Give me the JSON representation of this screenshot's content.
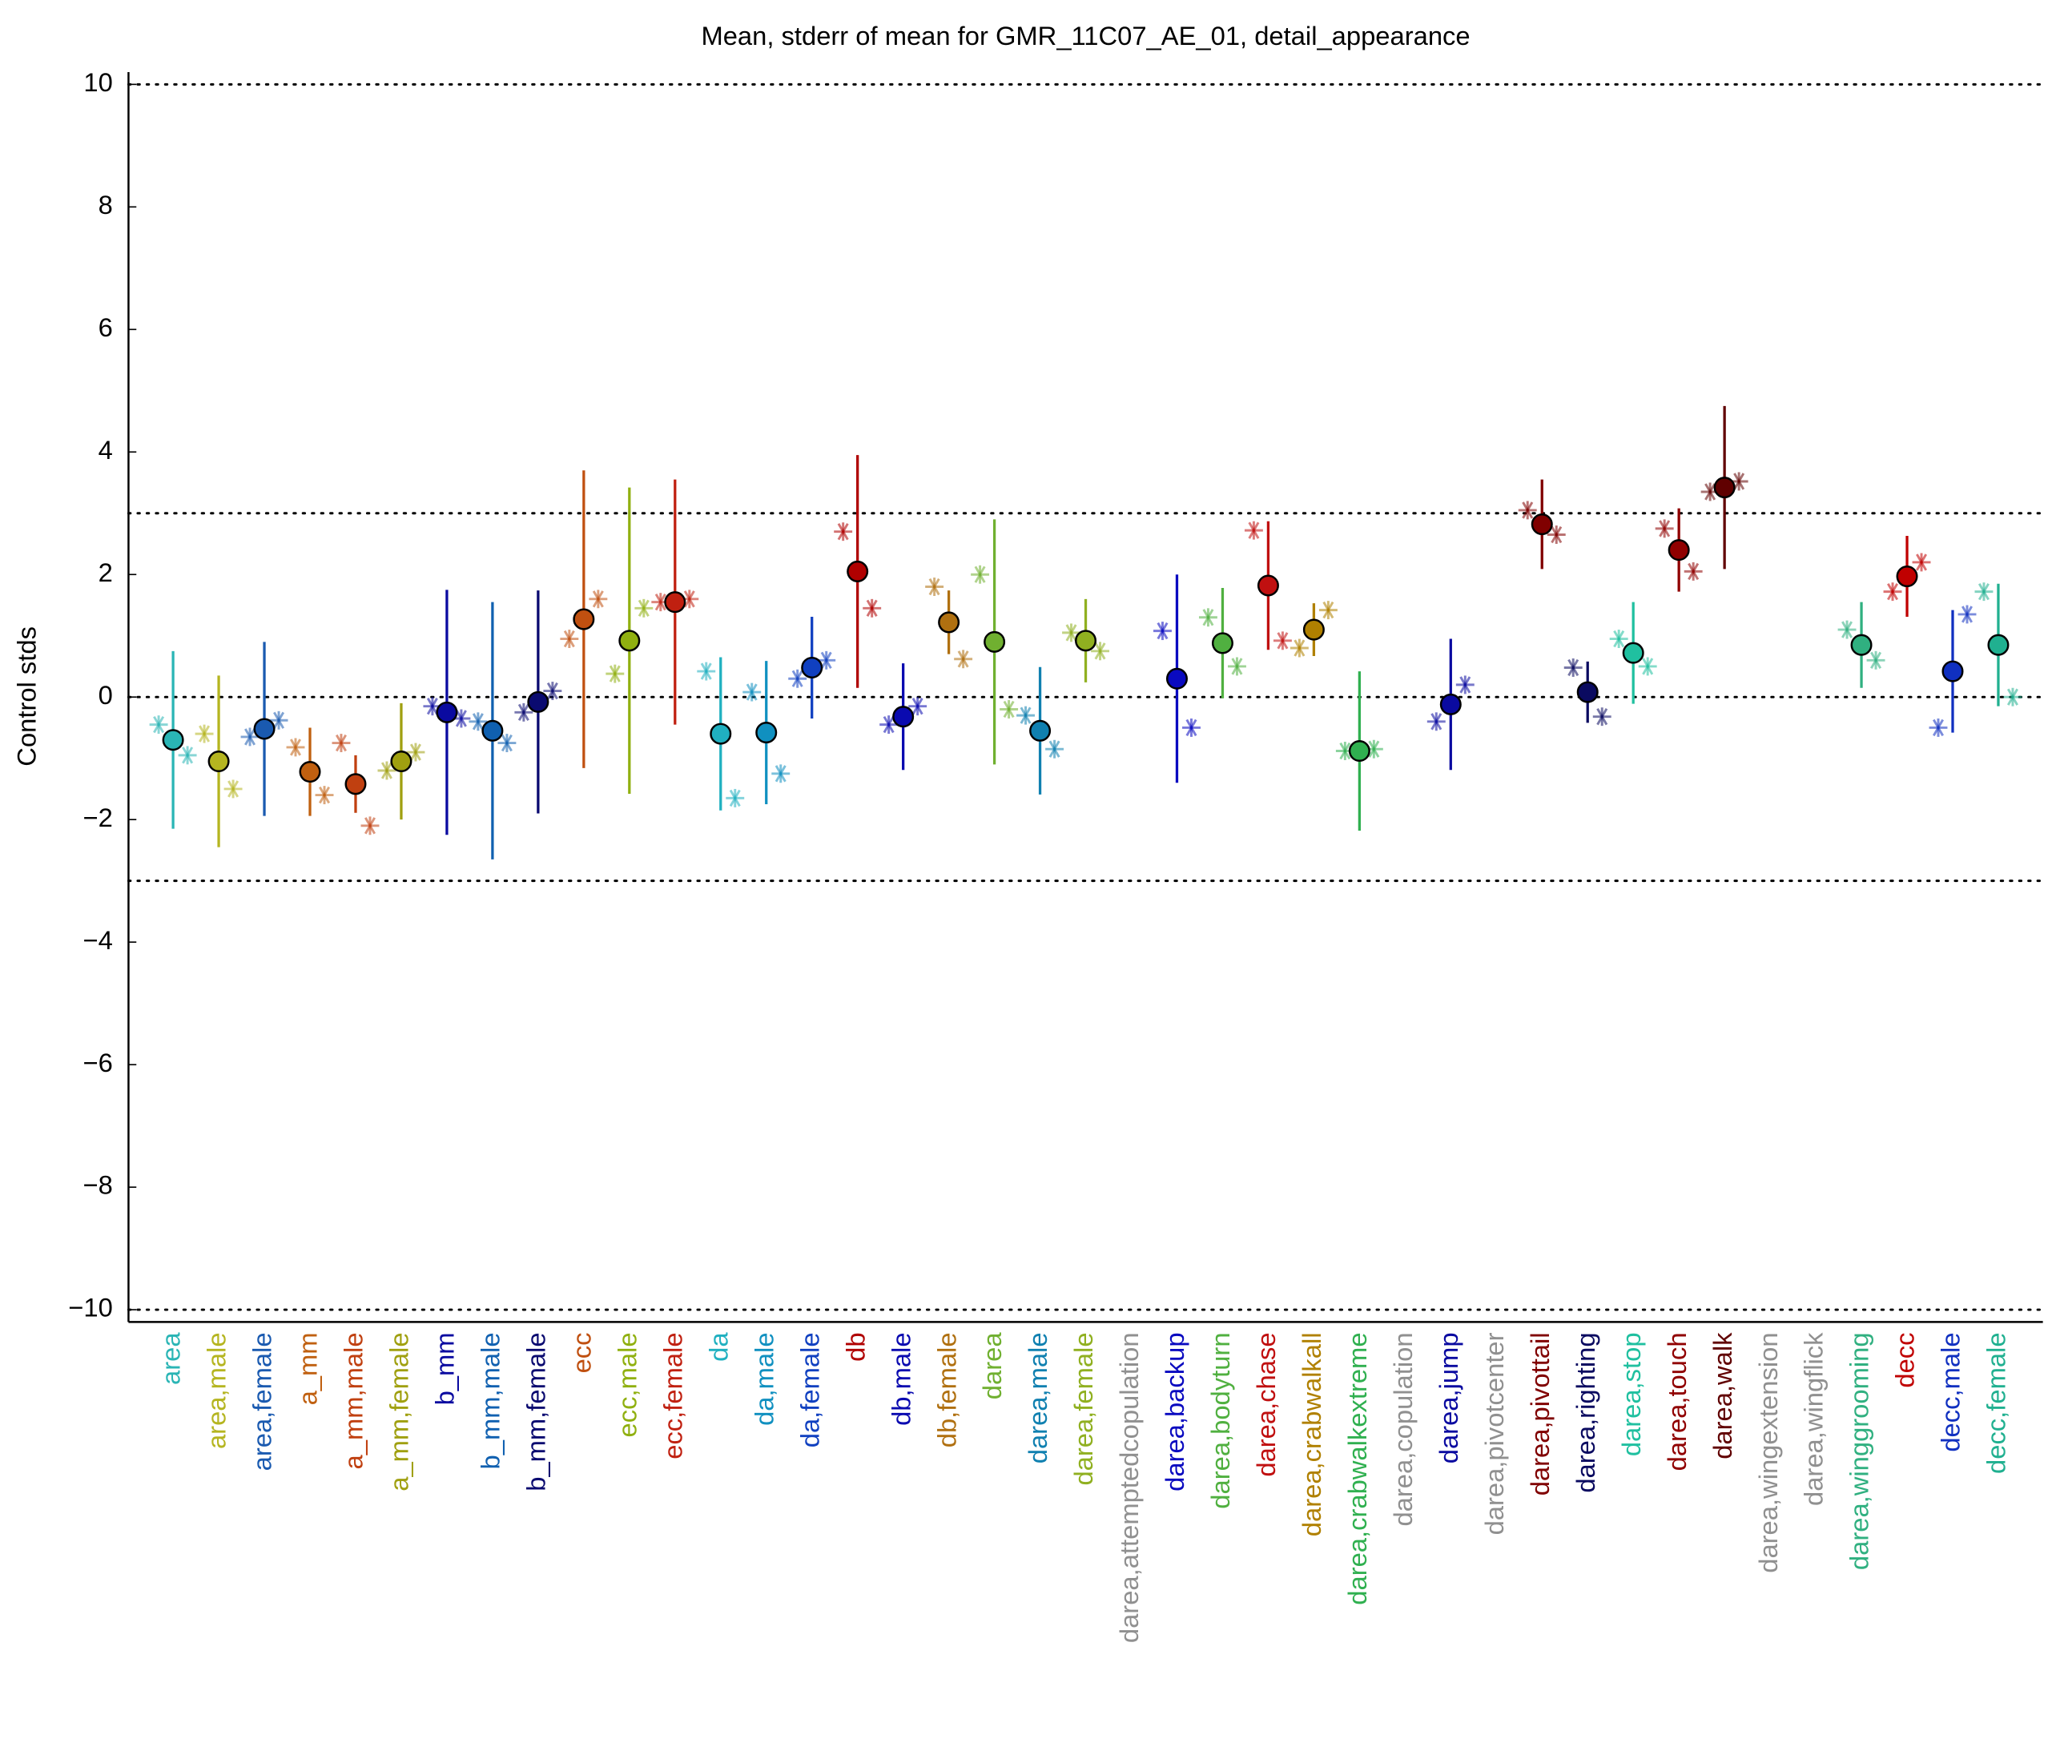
{
  "chart_data": {
    "type": "errorbar",
    "title": "Mean, stderr of mean for GMR_11C07_AE_01, detail_appearance",
    "ylabel": "Control stds",
    "ylim": [
      -10.2,
      10.2
    ],
    "yticks": [
      {
        "value": -10,
        "label": "−10"
      },
      {
        "value": -8,
        "label": "−8"
      },
      {
        "value": -6,
        "label": "−6"
      },
      {
        "value": -4,
        "label": "−4"
      },
      {
        "value": -2,
        "label": "−2"
      },
      0,
      2,
      4,
      6,
      8,
      10
    ],
    "hlines": [
      10,
      3,
      0,
      -3,
      -10
    ],
    "categories": [
      "area",
      "area,male",
      "area,female",
      "a_mm",
      "a_mm,male",
      "a_mm,female",
      "b_mm",
      "b_mm,male",
      "b_mm,female",
      "ecc",
      "ecc,male",
      "ecc,female",
      "da",
      "da,male",
      "da,female",
      "db",
      "db,male",
      "db,female",
      "darea",
      "darea,male",
      "darea,female",
      "darea,attemptedcopulation",
      "darea,backup",
      "darea,bodyturn",
      "darea,chase",
      "darea,crabwalkall",
      "darea,crabwalkextreme",
      "darea,copulation",
      "darea,jump",
      "darea,pivotcenter",
      "darea,pivottail",
      "darea,righting",
      "darea,stop",
      "darea,touch",
      "darea,walk",
      "darea,wingextension",
      "darea,wingflick",
      "darea,winggrooming",
      "decc",
      "decc,male",
      "decc,female"
    ],
    "values": [
      -0.7,
      -1.05,
      -0.52,
      -1.22,
      -1.42,
      -1.05,
      -0.25,
      -0.55,
      -0.08,
      1.27,
      0.92,
      1.55,
      -0.6,
      -0.58,
      0.48,
      2.05,
      -0.32,
      1.22,
      0.9,
      -0.55,
      0.92,
      null,
      0.3,
      0.88,
      1.82,
      1.1,
      -0.88,
      null,
      -0.12,
      null,
      2.82,
      0.08,
      0.72,
      2.4,
      3.42,
      null,
      null,
      0.85,
      1.97,
      0.42,
      0.85
    ],
    "errors": [
      1.45,
      1.4,
      1.42,
      0.72,
      0.47,
      0.95,
      2.0,
      2.1,
      1.82,
      2.43,
      2.5,
      2.0,
      1.25,
      1.17,
      0.83,
      1.9,
      0.87,
      0.52,
      2.0,
      1.04,
      0.68,
      null,
      1.7,
      0.9,
      1.05,
      0.43,
      1.3,
      null,
      1.07,
      null,
      0.73,
      0.5,
      0.83,
      0.68,
      1.33,
      null,
      null,
      0.7,
      0.66,
      1.0,
      1.0
    ],
    "stars": [
      [
        -0.45,
        -0.95
      ],
      [
        -0.6,
        -1.5
      ],
      [
        -0.65,
        -0.38
      ],
      [
        -0.82,
        -1.6
      ],
      [
        -0.75,
        -2.1
      ],
      [
        -1.2,
        -0.9
      ],
      [
        -0.15,
        -0.35
      ],
      [
        -0.4,
        -0.75
      ],
      [
        -0.25,
        0.1
      ],
      [
        0.95,
        1.6
      ],
      [
        0.38,
        1.45
      ],
      [
        1.55,
        1.6
      ],
      [
        0.42,
        -1.65
      ],
      [
        0.08,
        -1.25
      ],
      [
        0.3,
        0.6
      ],
      [
        2.7,
        1.45
      ],
      [
        -0.45,
        -0.15
      ],
      [
        1.8,
        0.62
      ],
      [
        2.0,
        -0.2
      ],
      [
        -0.3,
        -0.85
      ],
      [
        1.05,
        0.75
      ],
      [
        null,
        null
      ],
      [
        1.08,
        -0.5
      ],
      [
        1.3,
        0.5
      ],
      [
        2.72,
        0.92
      ],
      [
        0.8,
        1.42
      ],
      [
        -0.88,
        -0.85
      ],
      [
        null,
        null
      ],
      [
        -0.4,
        0.2
      ],
      [
        null,
        null
      ],
      [
        3.05,
        2.65
      ],
      [
        0.48,
        -0.32
      ],
      [
        0.95,
        0.5
      ],
      [
        2.75,
        2.05
      ],
      [
        3.35,
        3.52
      ],
      [
        null,
        null
      ],
      [
        null,
        null
      ],
      [
        1.1,
        0.6
      ],
      [
        1.72,
        2.2
      ],
      [
        -0.5,
        1.35
      ],
      [
        1.72,
        0.0
      ]
    ],
    "colors": [
      "#2ab5b5",
      "#b5b520",
      "#1a5ab0",
      "#c06010",
      "#c04010",
      "#a0a010",
      "#0a0aa0",
      "#1060b0",
      "#0a0a70",
      "#c05010",
      "#90b010",
      "#c02010",
      "#20b0c0",
      "#1090c0",
      "#1040c0",
      "#b00000",
      "#0a0ab0",
      "#b07010",
      "#70b030",
      "#1080b0",
      "#90b020",
      "#909090",
      "#0a0ac0",
      "#50b040",
      "#c01010",
      "#b08000",
      "#30b050",
      "#909090",
      "#0a0aa0",
      "#909090",
      "#800000",
      "#0a0a60",
      "#20c0a0",
      "#900000",
      "#600000",
      "#909090",
      "#909090",
      "#30b080",
      "#c00000",
      "#1030c0",
      "#20b090"
    ]
  }
}
